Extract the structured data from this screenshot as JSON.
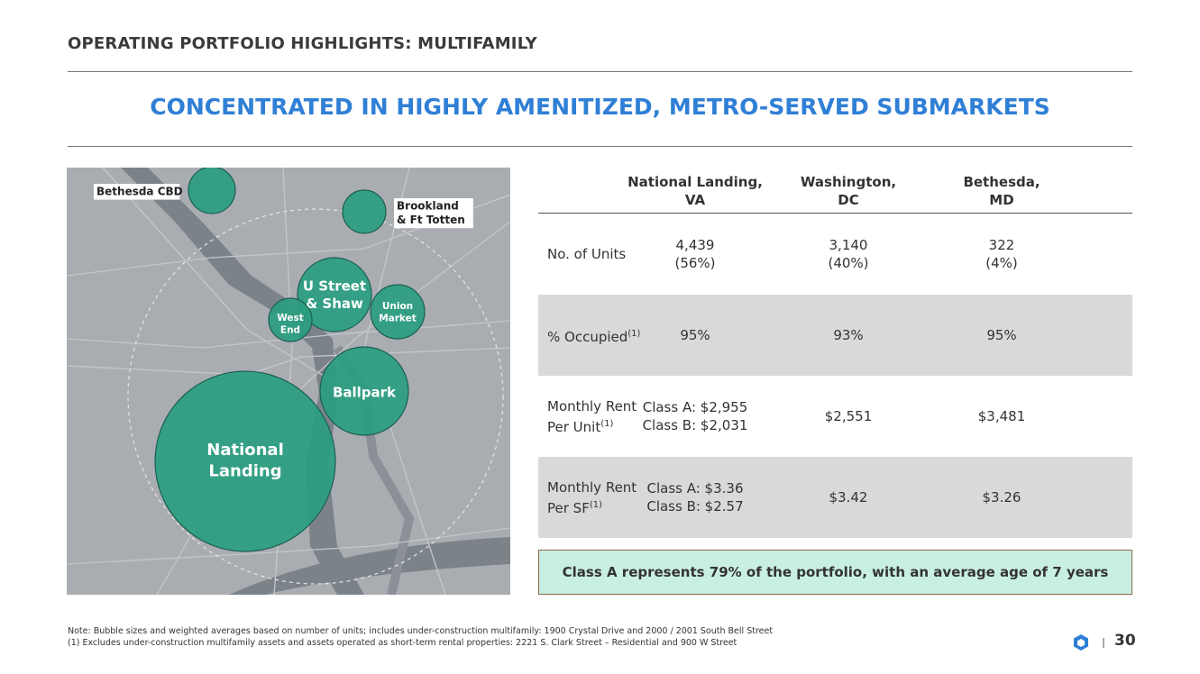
{
  "header": {
    "title": "OPERATING PORTFOLIO HIGHLIGHTS: MULTIFAMILY"
  },
  "subtitle": "CONCENTRATED IN HIGHLY AMENITIZED, METRO-SERVED SUBMARKETS",
  "map": {
    "bubbles": [
      {
        "label": [
          "Bethesda CBD"
        ]
      },
      {
        "label": [
          "Brookland",
          "& Ft Totten"
        ]
      },
      {
        "label": [
          "U Street",
          "& Shaw"
        ]
      },
      {
        "label": [
          "West",
          "End"
        ]
      },
      {
        "label": [
          "Union",
          "Market"
        ]
      },
      {
        "label": [
          "Ballpark"
        ]
      },
      {
        "label": [
          "National",
          "Landing"
        ]
      }
    ]
  },
  "table": {
    "columns": [
      [
        "National Landing,",
        "VA"
      ],
      [
        "Washington,",
        "DC"
      ],
      [
        "Bethesda,",
        "MD"
      ]
    ],
    "rows": [
      {
        "label": [
          "No. of Units"
        ],
        "cells": [
          [
            "4,439",
            "(56%)"
          ],
          [
            "3,140",
            "(40%)"
          ],
          [
            "322",
            "(4%)"
          ]
        ]
      },
      {
        "label": [
          "% Occupied"
        ],
        "note": "(1)",
        "cells": [
          [
            "95%"
          ],
          [
            "93%"
          ],
          [
            "95%"
          ]
        ]
      },
      {
        "label": [
          "Monthly Rent",
          "Per Unit"
        ],
        "note": "(1)",
        "cells": [
          [
            "Class A: $2,955",
            "Class B: $2,031"
          ],
          [
            "$2,551"
          ],
          [
            "$3,481"
          ]
        ]
      },
      {
        "label": [
          "Monthly Rent",
          "Per SF"
        ],
        "note": "(1)",
        "cells": [
          [
            "Class A: $3.36",
            "Class B: $2.57"
          ],
          [
            "$3.42"
          ],
          [
            "$3.26"
          ]
        ]
      }
    ]
  },
  "callout": "Class A represents 79% of the portfolio, with an average age of 7 years",
  "footnotes": [
    "Note: Bubble sizes and weighted averages based on number of units; includes under-construction multifamily: 1900 Crystal Drive and 2000 / 2001 South Bell Street",
    "(1) Excludes under-construction multifamily assets and assets operated as short-term rental properties: 2221 S. Clark Street – Residential and 900 W Street"
  ],
  "page_number": "30"
}
